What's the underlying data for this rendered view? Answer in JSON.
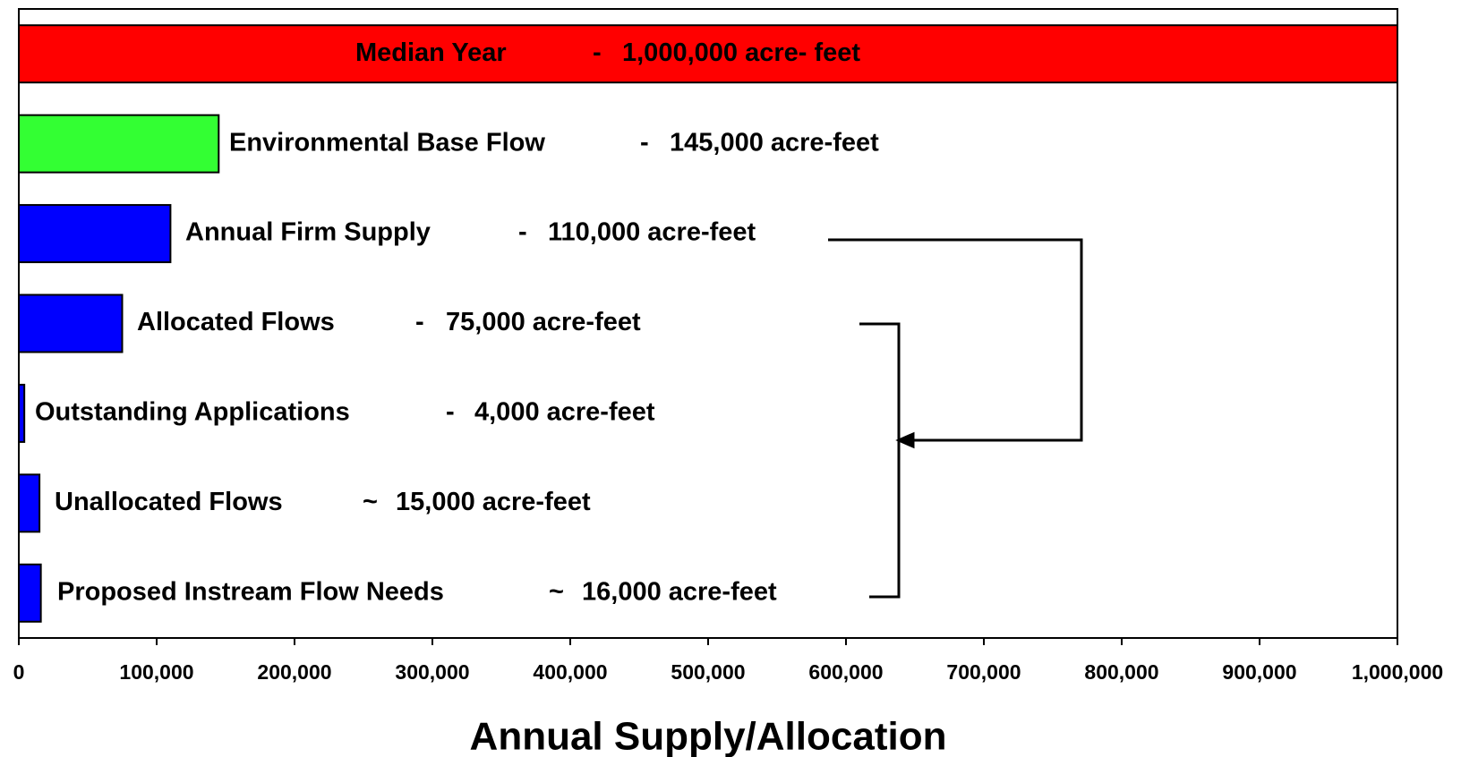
{
  "chart_data": {
    "type": "hbar",
    "categories": [
      "Median Year",
      "Environmental Base Flow",
      "Annual Firm Supply",
      "Allocated Flows",
      "Outstanding Applications",
      "Unallocated Flows",
      "Proposed Instream Flow Needs"
    ],
    "values": [
      1000000,
      145000,
      110000,
      75000,
      4000,
      15000,
      16000
    ],
    "separators": [
      "-",
      "-",
      "-",
      "-",
      "-",
      "~",
      "~"
    ],
    "value_labels": [
      "1,000,000 acre- feet",
      "145,000 acre-feet",
      "110,000 acre-feet",
      "75,000 acre-feet",
      "4,000 acre-feet",
      "15,000 acre-feet",
      "16,000 acre-feet"
    ],
    "colors": [
      "#ff0000",
      "#33ff33",
      "#0000ff",
      "#0000ff",
      "#0000ff",
      "#0000ff",
      "#0000ff"
    ],
    "xlabel": "Annual Supply/Allocation",
    "xlim": [
      0,
      1000000
    ],
    "xticks": [
      0,
      {
        "value": 100000,
        "label": "100,000"
      },
      {
        "value": 200000,
        "label": "200,000"
      },
      {
        "value": 300000,
        "label": "300,000"
      },
      {
        "value": 400000,
        "label": "400,000"
      },
      {
        "value": 500000,
        "label": "500,000"
      },
      {
        "value": 600000,
        "label": "600,000"
      },
      {
        "value": 700000,
        "label": "700,000"
      },
      {
        "value": 800000,
        "label": "800,000"
      },
      {
        "value": 900000,
        "label": "900,000"
      },
      {
        "value": 1000000,
        "label": "1,000,000"
      }
    ]
  }
}
